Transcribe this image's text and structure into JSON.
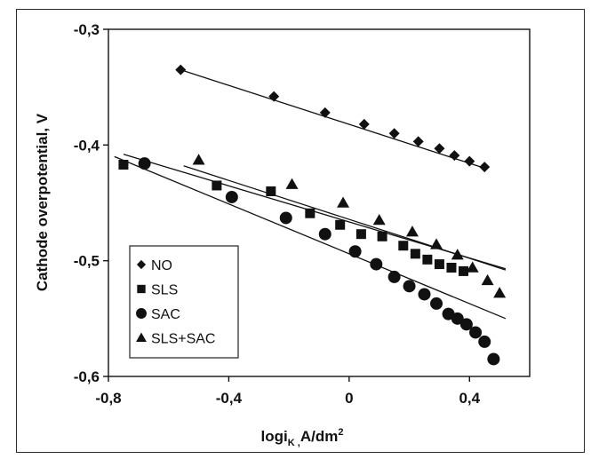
{
  "chart_data": {
    "type": "scatter",
    "xlabel": "logi",
    "xlabel_sub": "K ,",
    "xlabel_unit": "A/dm",
    "xlabel_sup": "2",
    "ylabel": "Cathode overpotential, V",
    "xlim": [
      -0.8,
      0.6
    ],
    "ylim": [
      -0.6,
      -0.3
    ],
    "x_ticks": [
      -0.8,
      -0.4,
      0,
      0.4
    ],
    "x_tick_labels": [
      "-0,8",
      "-0,4",
      "0",
      "0,4"
    ],
    "y_ticks": [
      -0.3,
      -0.4,
      -0.5,
      -0.6
    ],
    "y_tick_labels": [
      "-0,3",
      "-0,4",
      "-0,5",
      "-0,6"
    ],
    "grid": false,
    "legend_position": "bottom-left",
    "series": [
      {
        "name": "NO",
        "marker": "diamond",
        "x": [
          -0.56,
          -0.25,
          -0.08,
          0.05,
          0.15,
          0.23,
          0.3,
          0.35,
          0.4,
          0.45
        ],
        "y": [
          -0.335,
          -0.358,
          -0.372,
          -0.382,
          -0.39,
          -0.397,
          -0.403,
          -0.409,
          -0.414,
          -0.419
        ],
        "fit": {
          "x": [
            -0.56,
            0.45
          ],
          "y": [
            -0.335,
            -0.42
          ]
        }
      },
      {
        "name": "SLS",
        "marker": "square",
        "x": [
          -0.75,
          -0.44,
          -0.26,
          -0.13,
          -0.03,
          0.04,
          0.11,
          0.18,
          0.22,
          0.26,
          0.3,
          0.34,
          0.38
        ],
        "y": [
          -0.417,
          -0.435,
          -0.44,
          -0.459,
          -0.469,
          -0.477,
          -0.479,
          -0.487,
          -0.494,
          -0.499,
          -0.503,
          -0.506,
          -0.509
        ],
        "fit": {
          "x": [
            -0.75,
            0.52
          ],
          "y": [
            -0.408,
            -0.507
          ]
        }
      },
      {
        "name": "SAC",
        "marker": "circle",
        "x": [
          -0.68,
          -0.39,
          -0.21,
          -0.08,
          0.02,
          0.09,
          0.15,
          0.2,
          0.25,
          0.29,
          0.33,
          0.36,
          0.39,
          0.42,
          0.45,
          0.48
        ],
        "y": [
          -0.416,
          -0.445,
          -0.463,
          -0.477,
          -0.492,
          -0.503,
          -0.514,
          -0.522,
          -0.529,
          -0.537,
          -0.546,
          -0.55,
          -0.555,
          -0.562,
          -0.57,
          -0.585
        ],
        "fit": {
          "x": [
            -0.78,
            0.52
          ],
          "y": [
            -0.41,
            -0.55
          ]
        }
      },
      {
        "name": "SLS+SAC",
        "marker": "triangle",
        "x": [
          -0.5,
          -0.19,
          -0.02,
          0.1,
          0.21,
          0.29,
          0.36,
          0.41,
          0.46,
          0.5
        ],
        "y": [
          -0.413,
          -0.434,
          -0.45,
          -0.465,
          -0.475,
          -0.486,
          -0.495,
          -0.506,
          -0.517,
          -0.528
        ],
        "fit": {
          "x": [
            -0.55,
            0.52
          ],
          "y": [
            -0.418,
            -0.508
          ]
        }
      }
    ]
  }
}
